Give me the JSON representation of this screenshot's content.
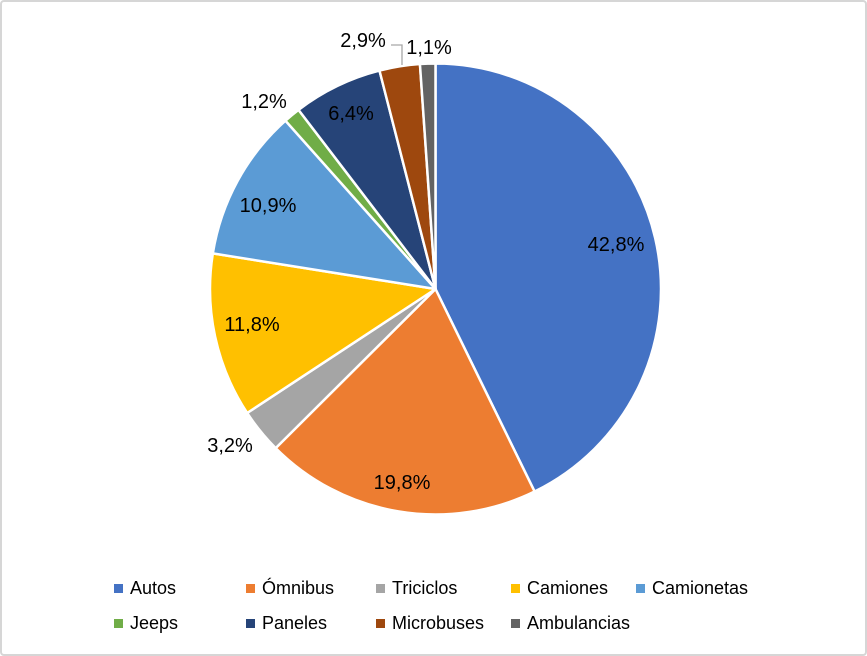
{
  "chart_data": {
    "type": "pie",
    "title": "",
    "unit": "percent",
    "decimal_separator": ",",
    "start_angle_deg": 0,
    "direction": "clockwise",
    "legend_position": "bottom",
    "legend_row_sizes": [
      5,
      4
    ],
    "categories": [
      "Autos",
      "Ómnibus",
      "Triciclos",
      "Camiones",
      "Camionetas",
      "Jeeps",
      "Paneles",
      "Microbuses",
      "Ambulancias"
    ],
    "values": [
      42.8,
      19.8,
      3.2,
      11.8,
      10.9,
      1.2,
      6.4,
      2.9,
      1.1
    ],
    "labels": [
      "42,8%",
      "19,8%",
      "3,2%",
      "11,8%",
      "10,9%",
      "1,2%",
      "6,4%",
      "2,9%",
      "1,1%"
    ],
    "colors": [
      "#4472C4",
      "#ED7D31",
      "#A5A5A5",
      "#FFC000",
      "#5B9BD5",
      "#70AD47",
      "#264478",
      "#9E480E",
      "#636363"
    ],
    "label_placements": [
      "inside",
      "inside",
      "outside",
      "inside",
      "inside",
      "outside",
      "inside",
      "outside-with-leader",
      "outside"
    ],
    "leader_line_color": "#a6a6a6",
    "slice_border_color": "#ffffff"
  }
}
